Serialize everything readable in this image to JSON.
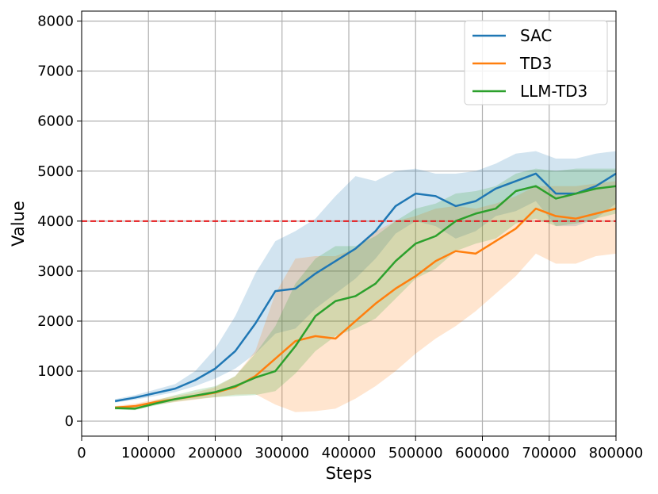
{
  "chart_data": {
    "type": "line",
    "title": "",
    "xlabel": "Steps",
    "ylabel": "Value",
    "xlim": [
      0,
      800000
    ],
    "ylim": [
      -300,
      8200
    ],
    "xticks": [
      0,
      100000,
      200000,
      300000,
      400000,
      500000,
      600000,
      700000,
      800000
    ],
    "yticks": [
      0,
      1000,
      2000,
      3000,
      4000,
      5000,
      6000,
      7000,
      8000
    ],
    "grid": true,
    "legend_position": "top-right",
    "threshold": {
      "value": 4000,
      "color": "#e41a1c",
      "style": "dashed"
    },
    "series": [
      {
        "name": "SAC",
        "color": "#1f77b4",
        "x": [
          50000,
          80000,
          110000,
          140000,
          170000,
          200000,
          230000,
          260000,
          290000,
          320000,
          350000,
          380000,
          410000,
          440000,
          470000,
          500000,
          530000,
          560000,
          590000,
          620000,
          650000,
          680000,
          710000,
          740000,
          770000,
          800000
        ],
        "mean": [
          400,
          470,
          560,
          650,
          820,
          1050,
          1400,
          1950,
          2600,
          2650,
          2950,
          3200,
          3450,
          3800,
          4300,
          4550,
          4500,
          4300,
          4400,
          4650,
          4800,
          4950,
          4550,
          4550,
          4700,
          4950
        ],
        "lower": [
          370,
          430,
          500,
          580,
          700,
          850,
          1050,
          1350,
          1750,
          1850,
          2250,
          2550,
          2850,
          3250,
          3750,
          4000,
          3900,
          3650,
          3800,
          4100,
          4200,
          4400,
          3900,
          3900,
          4050,
          4350
        ],
        "upper": [
          440,
          520,
          630,
          740,
          1000,
          1450,
          2100,
          2950,
          3600,
          3800,
          4050,
          4500,
          4900,
          4800,
          5000,
          5050,
          4950,
          4950,
          5000,
          5150,
          5350,
          5400,
          5250,
          5250,
          5350,
          5400
        ]
      },
      {
        "name": "TD3",
        "color": "#ff7f0e",
        "x": [
          50000,
          80000,
          110000,
          140000,
          170000,
          200000,
          230000,
          260000,
          290000,
          320000,
          350000,
          380000,
          410000,
          440000,
          470000,
          500000,
          530000,
          560000,
          590000,
          620000,
          650000,
          680000,
          710000,
          740000,
          770000,
          800000
        ],
        "mean": [
          270,
          300,
          380,
          440,
          500,
          570,
          680,
          900,
          1250,
          1600,
          1700,
          1650,
          2000,
          2350,
          2650,
          2900,
          3200,
          3400,
          3350,
          3600,
          3850,
          4250,
          4100,
          4050,
          4150,
          4250
        ],
        "lower": [
          240,
          250,
          330,
          380,
          430,
          480,
          530,
          540,
          330,
          180,
          200,
          250,
          450,
          700,
          1000,
          1350,
          1650,
          1900,
          2200,
          2550,
          2900,
          3350,
          3150,
          3150,
          3300,
          3350
        ],
        "upper": [
          300,
          350,
          430,
          500,
          570,
          680,
          900,
          1400,
          2550,
          3250,
          3300,
          3300,
          3450,
          3800,
          4000,
          4100,
          4250,
          4300,
          4250,
          4350,
          4500,
          4700,
          4700,
          4700,
          4750,
          4800
        ]
      },
      {
        "name": "LLM-TD3",
        "color": "#2ca02c",
        "x": [
          50000,
          80000,
          110000,
          140000,
          170000,
          200000,
          230000,
          260000,
          290000,
          320000,
          350000,
          380000,
          410000,
          440000,
          470000,
          500000,
          530000,
          560000,
          590000,
          620000,
          650000,
          680000,
          710000,
          740000,
          770000,
          800000
        ],
        "mean": [
          260,
          250,
          350,
          440,
          510,
          580,
          700,
          870,
          1000,
          1500,
          2100,
          2400,
          2500,
          2750,
          3200,
          3550,
          3700,
          4000,
          4150,
          4250,
          4600,
          4700,
          4450,
          4550,
          4650,
          4700
        ],
        "lower": [
          230,
          220,
          310,
          390,
          440,
          480,
          500,
          520,
          600,
          950,
          1400,
          1700,
          1850,
          2050,
          2450,
          2850,
          3050,
          3400,
          3550,
          3650,
          3950,
          4050,
          3900,
          3950,
          4050,
          4150
        ],
        "upper": [
          300,
          300,
          410,
          520,
          620,
          700,
          900,
          1350,
          1900,
          2750,
          3250,
          3500,
          3500,
          3700,
          4000,
          4250,
          4350,
          4550,
          4600,
          4700,
          4950,
          5050,
          5000,
          5050,
          5050,
          5050
        ]
      }
    ]
  }
}
